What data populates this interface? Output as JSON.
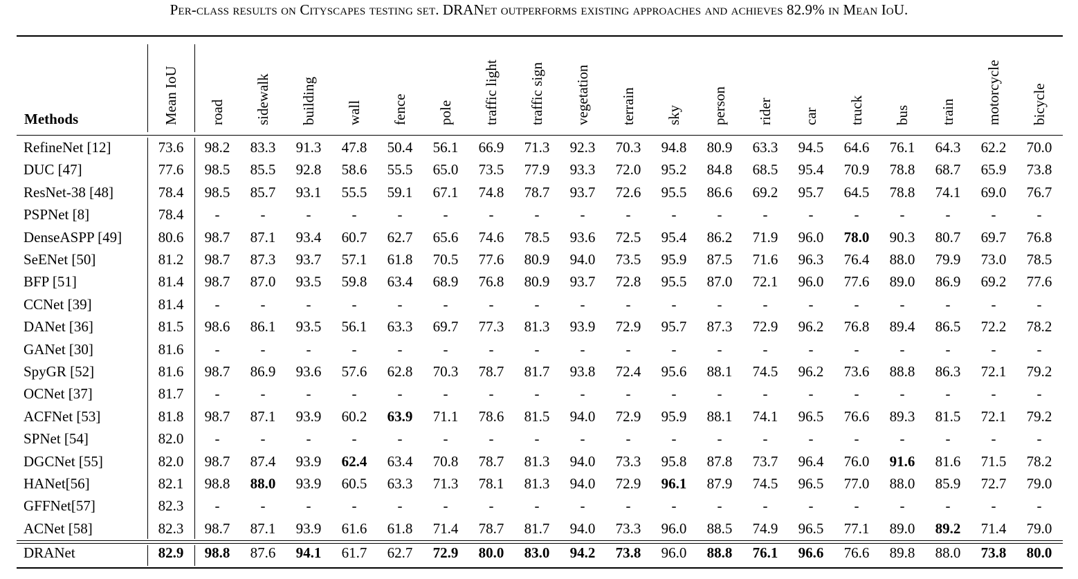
{
  "caption": "Per-class results on Cityscapes testing set. DRANet outperforms existing approaches and achieves 82.9% in Mean IoU.",
  "table": {
    "methods_header": "Methods",
    "columns": [
      "Mean IoU",
      "road",
      "sidewalk",
      "building",
      "wall",
      "fence",
      "pole",
      "traffic light",
      "traffic sign",
      "vegetation",
      "terrain",
      "sky",
      "person",
      "rider",
      "car",
      "truck",
      "bus",
      "train",
      "motorcycle",
      "bicycle"
    ],
    "rows": [
      {
        "method": "RefineNet [12]",
        "values": [
          "73.6",
          "98.2",
          "83.3",
          "91.3",
          "47.8",
          "50.4",
          "56.1",
          "66.9",
          "71.3",
          "92.3",
          "70.3",
          "94.8",
          "80.9",
          "63.3",
          "94.5",
          "64.6",
          "76.1",
          "64.3",
          "62.2",
          "70.0"
        ],
        "bold": []
      },
      {
        "method": "DUC [47]",
        "values": [
          "77.6",
          "98.5",
          "85.5",
          "92.8",
          "58.6",
          "55.5",
          "65.0",
          "73.5",
          "77.9",
          "93.3",
          "72.0",
          "95.2",
          "84.8",
          "68.5",
          "95.4",
          "70.9",
          "78.8",
          "68.7",
          "65.9",
          "73.8"
        ],
        "bold": []
      },
      {
        "method": "ResNet-38 [48]",
        "values": [
          "78.4",
          "98.5",
          "85.7",
          "93.1",
          "55.5",
          "59.1",
          "67.1",
          "74.8",
          "78.7",
          "93.7",
          "72.6",
          "95.5",
          "86.6",
          "69.2",
          "95.7",
          "64.5",
          "78.8",
          "74.1",
          "69.0",
          "76.7"
        ],
        "bold": []
      },
      {
        "method": "PSPNet [8]",
        "values": [
          "78.4",
          "-",
          "-",
          "-",
          "-",
          "-",
          "-",
          "-",
          "-",
          "-",
          "-",
          "-",
          "-",
          "-",
          "-",
          "-",
          "-",
          "-",
          "-",
          "-"
        ],
        "bold": []
      },
      {
        "method": "DenseASPP [49]",
        "values": [
          "80.6",
          "98.7",
          "87.1",
          "93.4",
          "60.7",
          "62.7",
          "65.6",
          "74.6",
          "78.5",
          "93.6",
          "72.5",
          "95.4",
          "86.2",
          "71.9",
          "96.0",
          "78.0",
          "90.3",
          "80.7",
          "69.7",
          "76.8"
        ],
        "bold": [
          15
        ]
      },
      {
        "method": "SeENet [50]",
        "values": [
          "81.2",
          "98.7",
          "87.3",
          "93.7",
          "57.1",
          "61.8",
          "70.5",
          "77.6",
          "80.9",
          "94.0",
          "73.5",
          "95.9",
          "87.5",
          "71.6",
          "96.3",
          "76.4",
          "88.0",
          "79.9",
          "73.0",
          "78.5"
        ],
        "bold": []
      },
      {
        "method": "BFP [51]",
        "values": [
          "81.4",
          "98.7",
          "87.0",
          "93.5",
          "59.8",
          "63.4",
          "68.9",
          "76.8",
          "80.9",
          "93.7",
          "72.8",
          "95.5",
          "87.0",
          "72.1",
          "96.0",
          "77.6",
          "89.0",
          "86.9",
          "69.2",
          "77.6"
        ],
        "bold": []
      },
      {
        "method": "CCNet [39]",
        "values": [
          "81.4",
          "-",
          "-",
          "-",
          "-",
          "-",
          "-",
          "-",
          "-",
          "-",
          "-",
          "-",
          "-",
          "-",
          "-",
          "-",
          "-",
          "-",
          "-",
          "-"
        ],
        "bold": []
      },
      {
        "method": "DANet [36]",
        "values": [
          "81.5",
          "98.6",
          "86.1",
          "93.5",
          "56.1",
          "63.3",
          "69.7",
          "77.3",
          "81.3",
          "93.9",
          "72.9",
          "95.7",
          "87.3",
          "72.9",
          "96.2",
          "76.8",
          "89.4",
          "86.5",
          "72.2",
          "78.2"
        ],
        "bold": []
      },
      {
        "method": "GANet [30]",
        "values": [
          "81.6",
          "-",
          "-",
          "-",
          "-",
          "-",
          "-",
          "-",
          "-",
          "-",
          "-",
          "-",
          "-",
          "-",
          "-",
          "-",
          "-",
          "-",
          "-",
          "-"
        ],
        "bold": []
      },
      {
        "method": "SpyGR [52]",
        "values": [
          "81.6",
          "98.7",
          "86.9",
          "93.6",
          "57.6",
          "62.8",
          "70.3",
          "78.7",
          "81.7",
          "93.8",
          "72.4",
          "95.6",
          "88.1",
          "74.5",
          "96.2",
          "73.6",
          "88.8",
          "86.3",
          "72.1",
          "79.2"
        ],
        "bold": []
      },
      {
        "method": "OCNet [37]",
        "values": [
          "81.7",
          "-",
          "-",
          "-",
          "-",
          "-",
          "-",
          "-",
          "-",
          "-",
          "-",
          "-",
          "-",
          "-",
          "-",
          "-",
          "-",
          "-",
          "-",
          "-"
        ],
        "bold": []
      },
      {
        "method": "ACFNet [53]",
        "values": [
          "81.8",
          "98.7",
          "87.1",
          "93.9",
          "60.2",
          "63.9",
          "71.1",
          "78.6",
          "81.5",
          "94.0",
          "72.9",
          "95.9",
          "88.1",
          "74.1",
          "96.5",
          "76.6",
          "89.3",
          "81.5",
          "72.1",
          "79.2"
        ],
        "bold": [
          5
        ]
      },
      {
        "method": "SPNet [54]",
        "values": [
          "82.0",
          "-",
          "-",
          "-",
          "-",
          "-",
          "-",
          "-",
          "-",
          "-",
          "-",
          "-",
          "-",
          "-",
          "-",
          "-",
          "-",
          "-",
          "-",
          "-"
        ],
        "bold": []
      },
      {
        "method": "DGCNet [55]",
        "values": [
          "82.0",
          "98.7",
          "87.4",
          "93.9",
          "62.4",
          "63.4",
          "70.8",
          "78.7",
          "81.3",
          "94.0",
          "73.3",
          "95.8",
          "87.8",
          "73.7",
          "96.4",
          "76.0",
          "91.6",
          "81.6",
          "71.5",
          "78.2"
        ],
        "bold": [
          4,
          16
        ]
      },
      {
        "method": "HANet[56]",
        "values": [
          "82.1",
          "98.8",
          "88.0",
          "93.9",
          "60.5",
          "63.3",
          "71.3",
          "78.1",
          "81.3",
          "94.0",
          "72.9",
          "96.1",
          "87.9",
          "74.5",
          "96.5",
          "77.0",
          "88.0",
          "85.9",
          "72.7",
          "79.0"
        ],
        "bold": [
          2,
          11
        ]
      },
      {
        "method": "GFFNet[57]",
        "values": [
          "82.3",
          "-",
          "-",
          "-",
          "-",
          "-",
          "-",
          "-",
          "-",
          "-",
          "-",
          "-",
          "-",
          "-",
          "-",
          "-",
          "-",
          "-",
          "-",
          "-"
        ],
        "bold": []
      },
      {
        "method": "ACNet [58]",
        "values": [
          "82.3",
          "98.7",
          "87.1",
          "93.9",
          "61.6",
          "61.8",
          "71.4",
          "78.7",
          "81.7",
          "94.0",
          "73.3",
          "96.0",
          "88.5",
          "74.9",
          "96.5",
          "77.1",
          "89.0",
          "89.2",
          "71.4",
          "79.0"
        ],
        "bold": [
          17
        ]
      },
      {
        "method": "DRANet",
        "values": [
          "82.9",
          "98.8",
          "87.6",
          "94.1",
          "61.7",
          "62.7",
          "72.9",
          "80.0",
          "83.0",
          "94.2",
          "73.8",
          "96.0",
          "88.8",
          "76.1",
          "96.6",
          "76.6",
          "89.8",
          "88.0",
          "73.8",
          "80.0"
        ],
        "bold": [
          0,
          1,
          3,
          6,
          7,
          8,
          9,
          10,
          12,
          13,
          14,
          18,
          19
        ]
      }
    ]
  }
}
